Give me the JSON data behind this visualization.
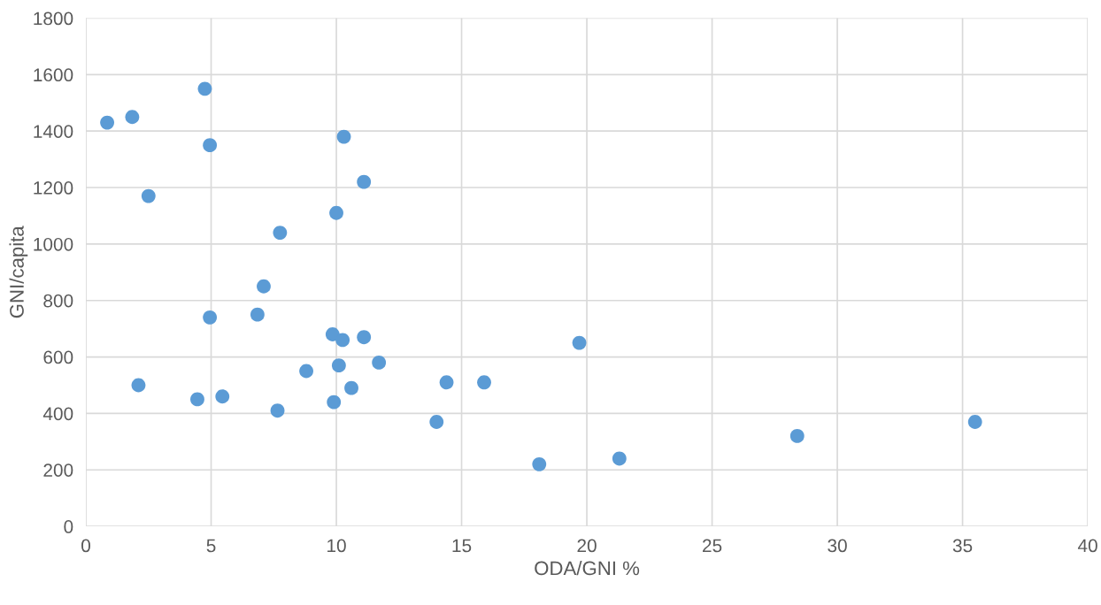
{
  "chart_data": {
    "type": "scatter",
    "xlabel": "ODA/GNI %",
    "ylabel": "GNI/capita",
    "x": [
      0.85,
      1.85,
      4.75,
      4.95,
      2.5,
      10.3,
      11.1,
      10.0,
      7.75,
      7.1,
      4.95,
      6.85,
      9.85,
      10.25,
      11.1,
      10.1,
      11.7,
      8.8,
      19.7,
      2.1,
      4.45,
      5.45,
      7.65,
      9.9,
      10.6,
      14.4,
      15.9,
      14.0,
      18.1,
      21.3,
      28.4,
      35.5
    ],
    "values": [
      1430,
      1450,
      1550,
      1350,
      1170,
      1380,
      1220,
      1110,
      1040,
      850,
      740,
      750,
      680,
      660,
      670,
      570,
      580,
      550,
      650,
      500,
      450,
      460,
      410,
      440,
      490,
      510,
      510,
      370,
      220,
      240,
      320,
      370
    ],
    "color": "#5b9bd5",
    "marker": "circle",
    "xlim": [
      0,
      40
    ],
    "xticks": [
      0,
      5,
      10,
      15,
      20,
      25,
      30,
      35,
      40
    ],
    "ylim": [
      0,
      1800
    ],
    "yticks": [
      0,
      200,
      400,
      600,
      800,
      1000,
      1200,
      1400,
      1600,
      1800
    ],
    "grid": true,
    "legend": false
  }
}
